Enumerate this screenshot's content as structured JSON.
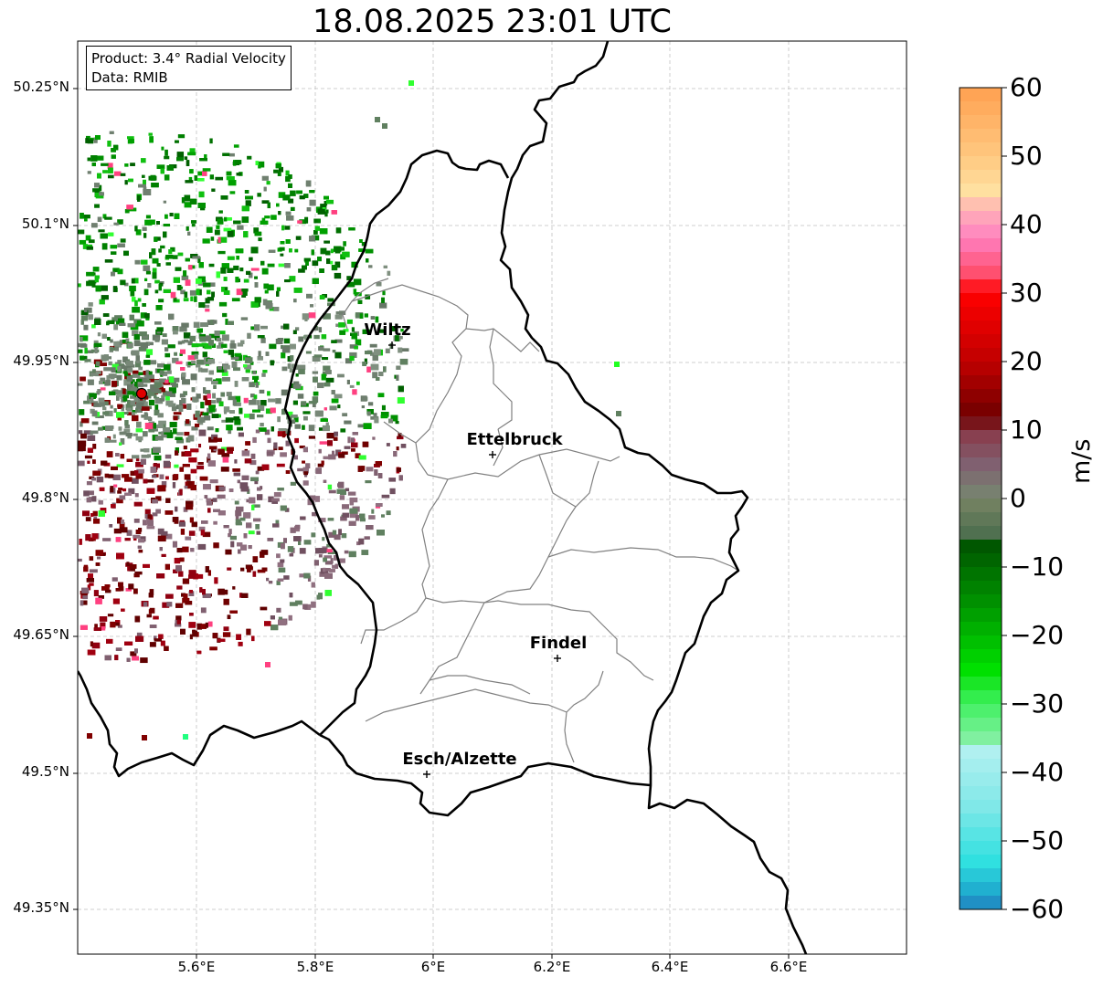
{
  "title": "18.08.2025 23:01 UTC",
  "info": {
    "product": "Product: 3.4° Radial Velocity",
    "data": "Data: RMIB"
  },
  "latitude_labels": [
    "50.25°N",
    "50.1°N",
    "49.95°N",
    "49.8°N",
    "49.65°N",
    "49.5°N",
    "49.35°N"
  ],
  "longitude_labels": [
    "5.6°E",
    "5.8°E",
    "6°E",
    "6.2°E",
    "6.4°E",
    "6.6°E"
  ],
  "cities": [
    {
      "name": "Wiltz"
    },
    {
      "name": "Ettelbruck"
    },
    {
      "name": "Findel"
    },
    {
      "name": "Esch/Alzette"
    }
  ],
  "colorbar": {
    "unit": "m/s",
    "ticks": [
      "60",
      "50",
      "40",
      "30",
      "20",
      "10",
      "0",
      "−10",
      "−20",
      "−30",
      "−40",
      "−50",
      "−60"
    ],
    "range": [
      -60,
      60
    ],
    "colors": {
      "top": "#ffa050",
      "pink": "#ff80c0",
      "red": "#ff0000",
      "darkred": "#700000",
      "mauve": "#806070",
      "neutral": "#708060",
      "darkgreen": "#005000",
      "green": "#00e000",
      "lightgreen": "#80f0a0",
      "cyan": "#30e0e0",
      "blue": "#2080c0"
    }
  },
  "radar_site_color": "#e00000"
}
